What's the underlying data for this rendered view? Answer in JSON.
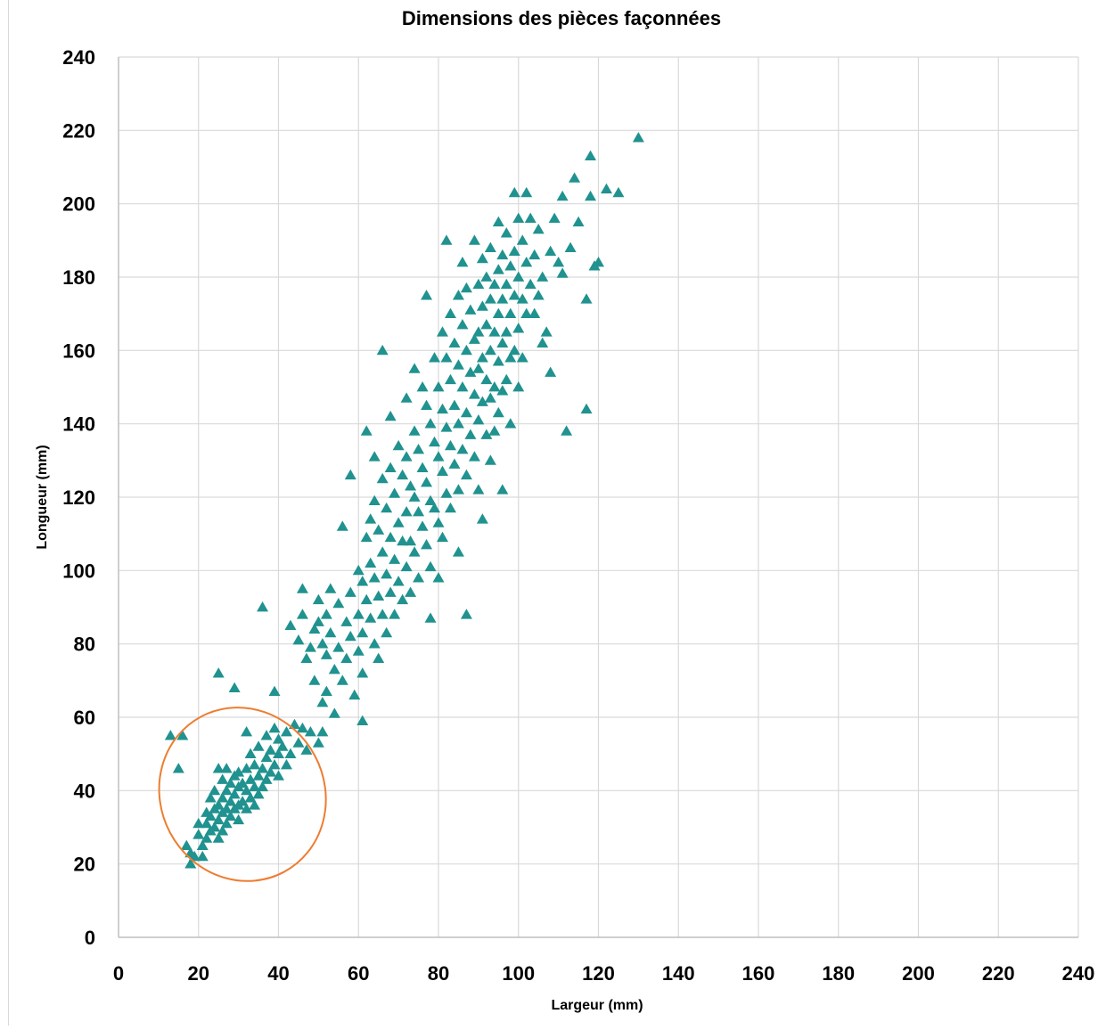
{
  "chart_data": {
    "type": "scatter",
    "title": "Dimensions des pièces façonnées",
    "xlabel": "Largeur  (mm)",
    "ylabel": "Longueur (mm)",
    "xlim": [
      0,
      240
    ],
    "ylim": [
      0,
      240
    ],
    "x_ticks": [
      "0",
      "20",
      "40",
      "60",
      "80",
      "100",
      "120",
      "140",
      "160",
      "180",
      "200",
      "220",
      "240"
    ],
    "y_ticks": [
      "0",
      "20",
      "40",
      "60",
      "80",
      "100",
      "120",
      "140",
      "160",
      "180",
      "200",
      "220",
      "240"
    ],
    "grid": true,
    "marker": "triangle",
    "colors": {
      "marker": "#20928f",
      "ellipse": "#ed7d31",
      "grid": "#d9d9d9"
    },
    "annotation": {
      "shape": "ellipse",
      "center": [
        31,
        39
      ],
      "half_width": 20.5,
      "half_height": 24,
      "rotation": -28
    },
    "series": [
      {
        "points": [
          [
            13,
            55
          ],
          [
            16,
            55
          ],
          [
            15,
            46
          ],
          [
            17,
            25
          ],
          [
            18,
            23
          ],
          [
            18,
            20
          ],
          [
            19,
            22
          ],
          [
            20,
            28
          ],
          [
            20,
            31
          ],
          [
            21,
            25
          ],
          [
            21,
            22
          ],
          [
            22,
            27
          ],
          [
            22,
            31
          ],
          [
            22,
            34
          ],
          [
            23,
            29
          ],
          [
            23,
            33
          ],
          [
            23,
            38
          ],
          [
            24,
            30
          ],
          [
            24,
            35
          ],
          [
            24,
            40
          ],
          [
            25,
            27
          ],
          [
            25,
            32
          ],
          [
            25,
            36
          ],
          [
            25,
            46
          ],
          [
            26,
            29
          ],
          [
            26,
            34
          ],
          [
            26,
            38
          ],
          [
            26,
            43
          ],
          [
            27,
            31
          ],
          [
            27,
            35
          ],
          [
            27,
            40
          ],
          [
            27,
            46
          ],
          [
            28,
            33
          ],
          [
            28,
            37
          ],
          [
            28,
            42
          ],
          [
            29,
            35
          ],
          [
            29,
            39
          ],
          [
            29,
            44
          ],
          [
            30,
            32
          ],
          [
            30,
            36
          ],
          [
            30,
            41
          ],
          [
            30,
            45
          ],
          [
            31,
            37
          ],
          [
            31,
            42
          ],
          [
            32,
            35
          ],
          [
            32,
            40
          ],
          [
            32,
            46
          ],
          [
            32,
            56
          ],
          [
            33,
            38
          ],
          [
            33,
            43
          ],
          [
            33,
            50
          ],
          [
            34,
            36
          ],
          [
            34,
            41
          ],
          [
            34,
            47
          ],
          [
            35,
            39
          ],
          [
            35,
            44
          ],
          [
            35,
            52
          ],
          [
            36,
            41
          ],
          [
            36,
            46
          ],
          [
            37,
            43
          ],
          [
            37,
            49
          ],
          [
            37,
            55
          ],
          [
            38,
            45
          ],
          [
            38,
            51
          ],
          [
            39,
            47
          ],
          [
            39,
            57
          ],
          [
            40,
            44
          ],
          [
            40,
            50
          ],
          [
            40,
            54
          ],
          [
            41,
            52
          ],
          [
            42,
            47
          ],
          [
            42,
            56
          ],
          [
            43,
            50
          ],
          [
            44,
            58
          ],
          [
            45,
            53
          ],
          [
            46,
            57
          ],
          [
            47,
            51
          ],
          [
            48,
            56
          ],
          [
            50,
            53
          ],
          [
            51,
            56
          ],
          [
            25,
            72
          ],
          [
            29,
            68
          ],
          [
            36,
            90
          ],
          [
            39,
            67
          ],
          [
            43,
            85
          ],
          [
            45,
            81
          ],
          [
            46,
            95
          ],
          [
            46,
            88
          ],
          [
            47,
            76
          ],
          [
            48,
            79
          ],
          [
            49,
            84
          ],
          [
            49,
            70
          ],
          [
            50,
            92
          ],
          [
            50,
            86
          ],
          [
            51,
            80
          ],
          [
            51,
            64
          ],
          [
            52,
            88
          ],
          [
            52,
            77
          ],
          [
            52,
            67
          ],
          [
            53,
            95
          ],
          [
            53,
            83
          ],
          [
            54,
            73
          ],
          [
            54,
            61
          ],
          [
            55,
            91
          ],
          [
            55,
            79
          ],
          [
            56,
            112
          ],
          [
            56,
            70
          ],
          [
            57,
            86
          ],
          [
            57,
            76
          ],
          [
            58,
            126
          ],
          [
            58,
            94
          ],
          [
            58,
            82
          ],
          [
            59,
            66
          ],
          [
            60,
            100
          ],
          [
            60,
            88
          ],
          [
            60,
            78
          ],
          [
            61,
            59
          ],
          [
            61,
            97
          ],
          [
            61,
            83
          ],
          [
            61,
            72
          ],
          [
            62,
            138
          ],
          [
            62,
            109
          ],
          [
            62,
            92
          ],
          [
            63,
            114
          ],
          [
            63,
            102
          ],
          [
            63,
            87
          ],
          [
            64,
            131
          ],
          [
            64,
            119
          ],
          [
            64,
            98
          ],
          [
            64,
            80
          ],
          [
            65,
            111
          ],
          [
            65,
            93
          ],
          [
            65,
            76
          ],
          [
            66,
            160
          ],
          [
            66,
            125
          ],
          [
            66,
            105
          ],
          [
            66,
            88
          ],
          [
            67,
            117
          ],
          [
            67,
            99
          ],
          [
            67,
            83
          ],
          [
            68,
            142
          ],
          [
            68,
            128
          ],
          [
            68,
            109
          ],
          [
            68,
            94
          ],
          [
            69,
            121
          ],
          [
            69,
            103
          ],
          [
            69,
            88
          ],
          [
            70,
            134
          ],
          [
            70,
            113
          ],
          [
            70,
            97
          ],
          [
            71,
            126
          ],
          [
            71,
            108
          ],
          [
            71,
            92
          ],
          [
            72,
            147
          ],
          [
            72,
            131
          ],
          [
            72,
            116
          ],
          [
            72,
            101
          ],
          [
            73,
            123
          ],
          [
            73,
            108
          ],
          [
            73,
            94
          ],
          [
            74,
            155
          ],
          [
            74,
            138
          ],
          [
            74,
            120
          ],
          [
            74,
            105
          ],
          [
            75,
            133
          ],
          [
            75,
            116
          ],
          [
            75,
            98
          ],
          [
            76,
            150
          ],
          [
            76,
            128
          ],
          [
            76,
            112
          ],
          [
            77,
            175
          ],
          [
            77,
            145
          ],
          [
            77,
            124
          ],
          [
            77,
            107
          ],
          [
            78,
            140
          ],
          [
            78,
            119
          ],
          [
            78,
            101
          ],
          [
            78,
            87
          ],
          [
            79,
            158
          ],
          [
            79,
            135
          ],
          [
            79,
            117
          ],
          [
            80,
            150
          ],
          [
            80,
            131
          ],
          [
            80,
            113
          ],
          [
            80,
            98
          ],
          [
            81,
            165
          ],
          [
            81,
            144
          ],
          [
            81,
            127
          ],
          [
            81,
            109
          ],
          [
            82,
            190
          ],
          [
            82,
            158
          ],
          [
            82,
            139
          ],
          [
            82,
            121
          ],
          [
            83,
            170
          ],
          [
            83,
            152
          ],
          [
            83,
            134
          ],
          [
            83,
            117
          ],
          [
            84,
            162
          ],
          [
            84,
            145
          ],
          [
            84,
            129
          ],
          [
            85,
            175
          ],
          [
            85,
            156
          ],
          [
            85,
            140
          ],
          [
            85,
            122
          ],
          [
            85,
            105
          ],
          [
            86,
            184
          ],
          [
            86,
            167
          ],
          [
            86,
            150
          ],
          [
            86,
            133
          ],
          [
            87,
            177
          ],
          [
            87,
            160
          ],
          [
            87,
            143
          ],
          [
            87,
            126
          ],
          [
            87,
            88
          ],
          [
            88,
            171
          ],
          [
            88,
            154
          ],
          [
            88,
            137
          ],
          [
            89,
            190
          ],
          [
            89,
            163
          ],
          [
            89,
            148
          ],
          [
            89,
            131
          ],
          [
            90,
            178
          ],
          [
            90,
            165
          ],
          [
            90,
            155
          ],
          [
            90,
            141
          ],
          [
            90,
            122
          ],
          [
            91,
            185
          ],
          [
            91,
            172
          ],
          [
            91,
            158
          ],
          [
            91,
            146
          ],
          [
            91,
            114
          ],
          [
            92,
            180
          ],
          [
            92,
            167
          ],
          [
            92,
            152
          ],
          [
            92,
            137
          ],
          [
            93,
            188
          ],
          [
            93,
            174
          ],
          [
            93,
            160
          ],
          [
            93,
            147
          ],
          [
            93,
            130
          ],
          [
            94,
            178
          ],
          [
            94,
            165
          ],
          [
            94,
            150
          ],
          [
            94,
            138
          ],
          [
            95,
            195
          ],
          [
            95,
            182
          ],
          [
            95,
            170
          ],
          [
            95,
            157
          ],
          [
            95,
            143
          ],
          [
            96,
            186
          ],
          [
            96,
            174
          ],
          [
            96,
            162
          ],
          [
            96,
            149
          ],
          [
            96,
            122
          ],
          [
            97,
            192
          ],
          [
            97,
            178
          ],
          [
            97,
            165
          ],
          [
            97,
            152
          ],
          [
            98,
            183
          ],
          [
            98,
            170
          ],
          [
            98,
            158
          ],
          [
            98,
            140
          ],
          [
            99,
            203
          ],
          [
            99,
            187
          ],
          [
            99,
            175
          ],
          [
            99,
            160
          ],
          [
            100,
            196
          ],
          [
            100,
            180
          ],
          [
            100,
            166
          ],
          [
            100,
            150
          ],
          [
            101,
            190
          ],
          [
            101,
            174
          ],
          [
            101,
            158
          ],
          [
            102,
            203
          ],
          [
            102,
            184
          ],
          [
            102,
            170
          ],
          [
            103,
            196
          ],
          [
            103,
            178
          ],
          [
            104,
            186
          ],
          [
            104,
            170
          ],
          [
            105,
            193
          ],
          [
            105,
            175
          ],
          [
            106,
            180
          ],
          [
            106,
            162
          ],
          [
            107,
            165
          ],
          [
            108,
            187
          ],
          [
            108,
            154
          ],
          [
            109,
            196
          ],
          [
            110,
            184
          ],
          [
            111,
            202
          ],
          [
            111,
            181
          ],
          [
            112,
            138
          ],
          [
            113,
            188
          ],
          [
            114,
            207
          ],
          [
            115,
            195
          ],
          [
            117,
            174
          ],
          [
            117,
            144
          ],
          [
            118,
            213
          ],
          [
            118,
            202
          ],
          [
            119,
            183
          ],
          [
            120,
            184
          ],
          [
            122,
            204
          ],
          [
            125,
            203
          ],
          [
            130,
            218
          ]
        ]
      }
    ]
  }
}
